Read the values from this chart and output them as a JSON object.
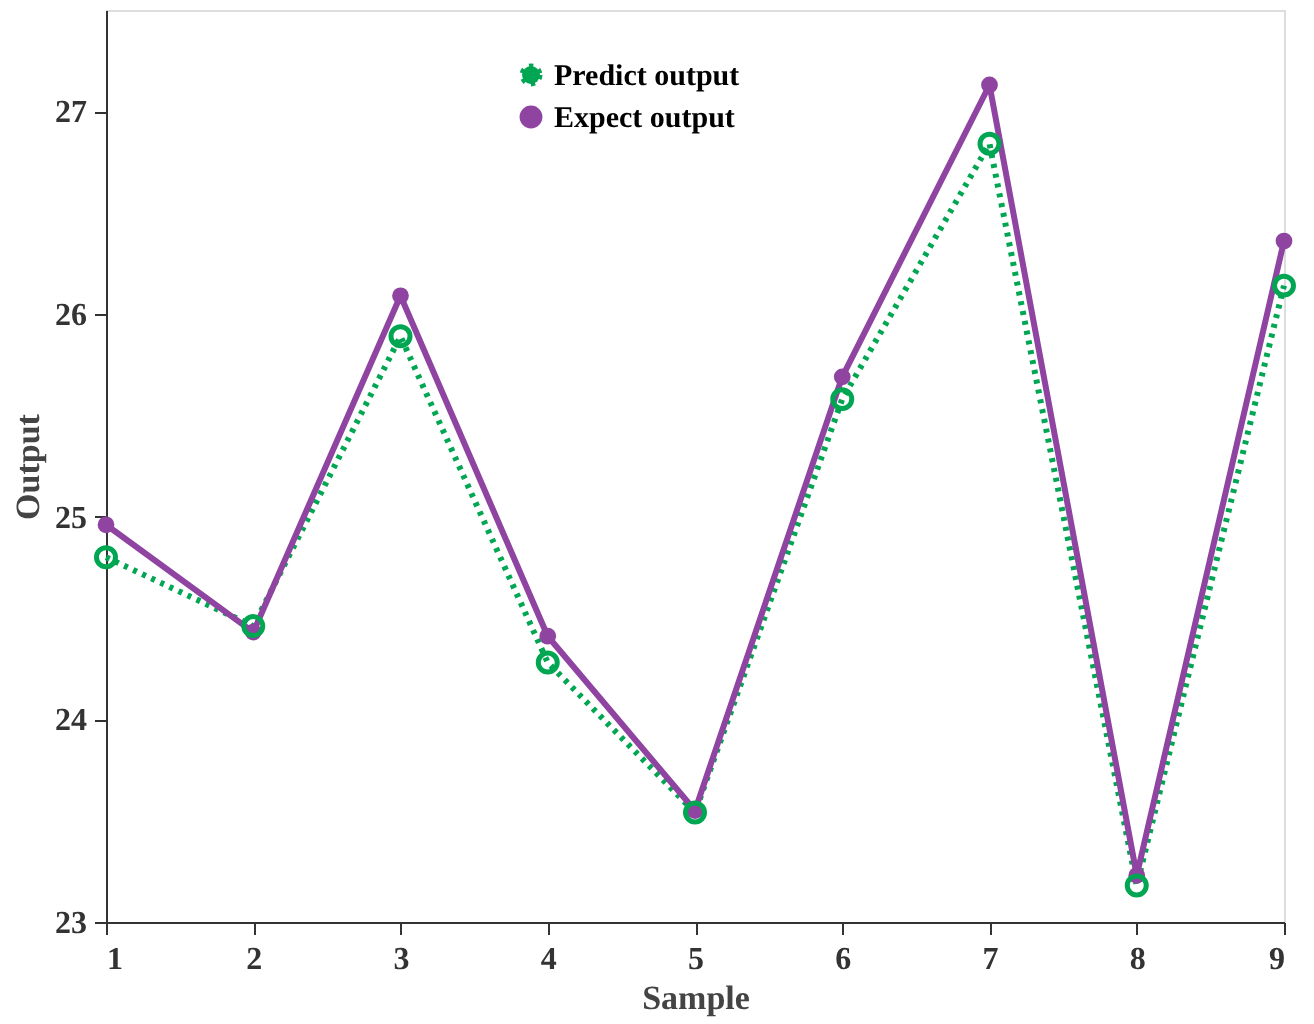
{
  "chart_data": {
    "type": "line",
    "xlabel": "Sample",
    "ylabel": "Output",
    "x": [
      1,
      2,
      3,
      4,
      5,
      6,
      7,
      8,
      9
    ],
    "series": [
      {
        "name": "Predict output",
        "color": "#00a651",
        "marker": "circle",
        "line_style": "dotted",
        "values": [
          24.8,
          24.46,
          25.89,
          24.28,
          23.54,
          25.58,
          26.84,
          23.18,
          26.14
        ]
      },
      {
        "name": "Expect output",
        "color": "#8e44a0",
        "marker": "circle",
        "line_style": "solid",
        "values": [
          24.96,
          24.43,
          26.09,
          24.41,
          23.55,
          25.69,
          27.13,
          23.23,
          26.36
        ]
      }
    ],
    "xlim": [
      1,
      9
    ],
    "xticks": [
      1,
      2,
      3,
      4,
      5,
      6,
      7,
      8,
      9
    ],
    "ylim": [
      23,
      27.5
    ],
    "yticks": [
      23,
      24,
      25,
      26,
      27
    ],
    "grid": false,
    "legend": "top"
  }
}
